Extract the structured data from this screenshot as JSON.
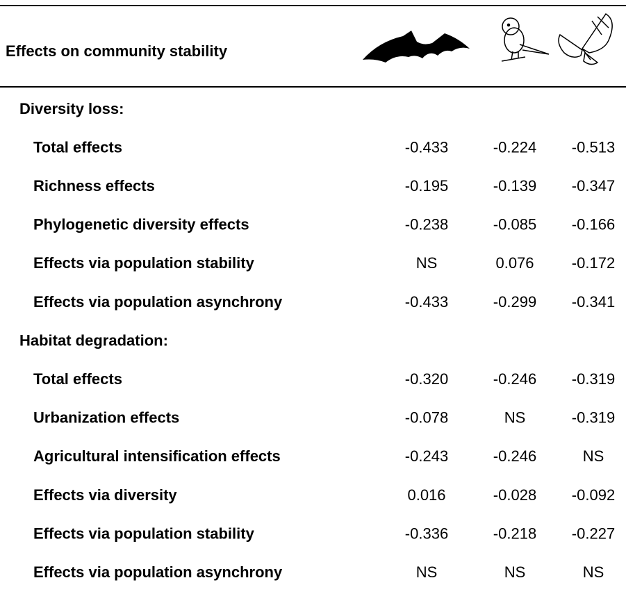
{
  "header": {
    "title": "Effects on community stability"
  },
  "sections": [
    {
      "title": "Diversity loss:",
      "rows": [
        {
          "label": "Total effects",
          "values": [
            "-0.433",
            "-0.224",
            "-0.513"
          ]
        },
        {
          "label": "Richness effects",
          "values": [
            "-0.195",
            "-0.139",
            "-0.347"
          ]
        },
        {
          "label": "Phylogenetic diversity effects",
          "values": [
            "-0.238",
            "-0.085",
            "-0.166"
          ]
        },
        {
          "label": "Effects via population stability",
          "values": [
            "NS",
            "0.076",
            "-0.172"
          ]
        },
        {
          "label": "Effects via population asynchrony",
          "values": [
            "-0.433",
            "-0.299",
            "-0.341"
          ]
        }
      ]
    },
    {
      "title": "Habitat degradation:",
      "rows": [
        {
          "label": "Total effects",
          "values": [
            "-0.320",
            "-0.246",
            "-0.319"
          ]
        },
        {
          "label": "Urbanization effects",
          "values": [
            "-0.078",
            "NS",
            "-0.319"
          ]
        },
        {
          "label": "Agricultural intensification effects",
          "values": [
            "-0.243",
            "-0.246",
            "NS"
          ]
        },
        {
          "label": "Effects via diversity",
          "values": [
            "0.016",
            "-0.028",
            "-0.092"
          ]
        },
        {
          "label": "Effects via population stability",
          "values": [
            "-0.336",
            "-0.218",
            "-0.227"
          ]
        },
        {
          "label": "Effects via population asynchrony",
          "values": [
            "NS",
            "NS",
            "NS"
          ]
        }
      ]
    }
  ]
}
